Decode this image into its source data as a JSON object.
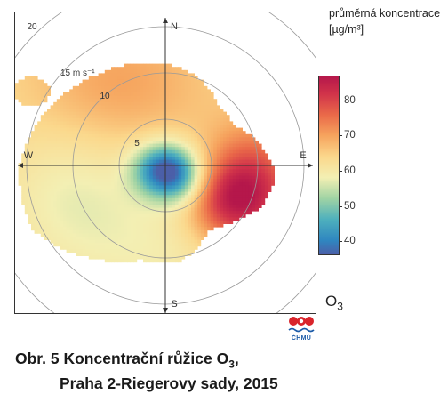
{
  "legend": {
    "title_line1": "průměrná koncentrace",
    "title_line2": "[µg/m³]",
    "ticks": [
      40,
      50,
      60,
      70,
      80
    ],
    "range": [
      36,
      87
    ]
  },
  "pollutant": {
    "name": "O",
    "subscript": "3"
  },
  "caption": {
    "line1_prefix": "Obr. 5  Koncentrační růžice O",
    "line1_subscript": "3",
    "line1_suffix": ",",
    "line2": "Praha 2-Riegerovy sady, 2015"
  },
  "logo": {
    "text": "ČHMÚ"
  },
  "chart_data": {
    "type": "heatmap",
    "subtype": "polar pollution rose",
    "directions": [
      "N",
      "E",
      "S",
      "W"
    ],
    "radial_axis": {
      "unit_label": "15 m s⁻¹",
      "ticks": [
        5,
        10,
        15,
        20
      ],
      "max": 20
    },
    "colorscale": [
      {
        "value": 36,
        "color": "#4b5fa8"
      },
      {
        "value": 40,
        "color": "#2f86c0"
      },
      {
        "value": 46,
        "color": "#4eb0bd"
      },
      {
        "value": 52,
        "color": "#9fd3a4"
      },
      {
        "value": 58,
        "color": "#f3efb3"
      },
      {
        "value": 64,
        "color": "#fbd88c"
      },
      {
        "value": 70,
        "color": "#f6a45e"
      },
      {
        "value": 76,
        "color": "#ea6a49"
      },
      {
        "value": 82,
        "color": "#d1334a"
      },
      {
        "value": 87,
        "color": "#b5174b"
      }
    ],
    "features": {
      "base_level": 63,
      "west_level": 58,
      "northwest_level": 70,
      "east_level": 82,
      "center_low": 36,
      "south_level": 59
    }
  }
}
